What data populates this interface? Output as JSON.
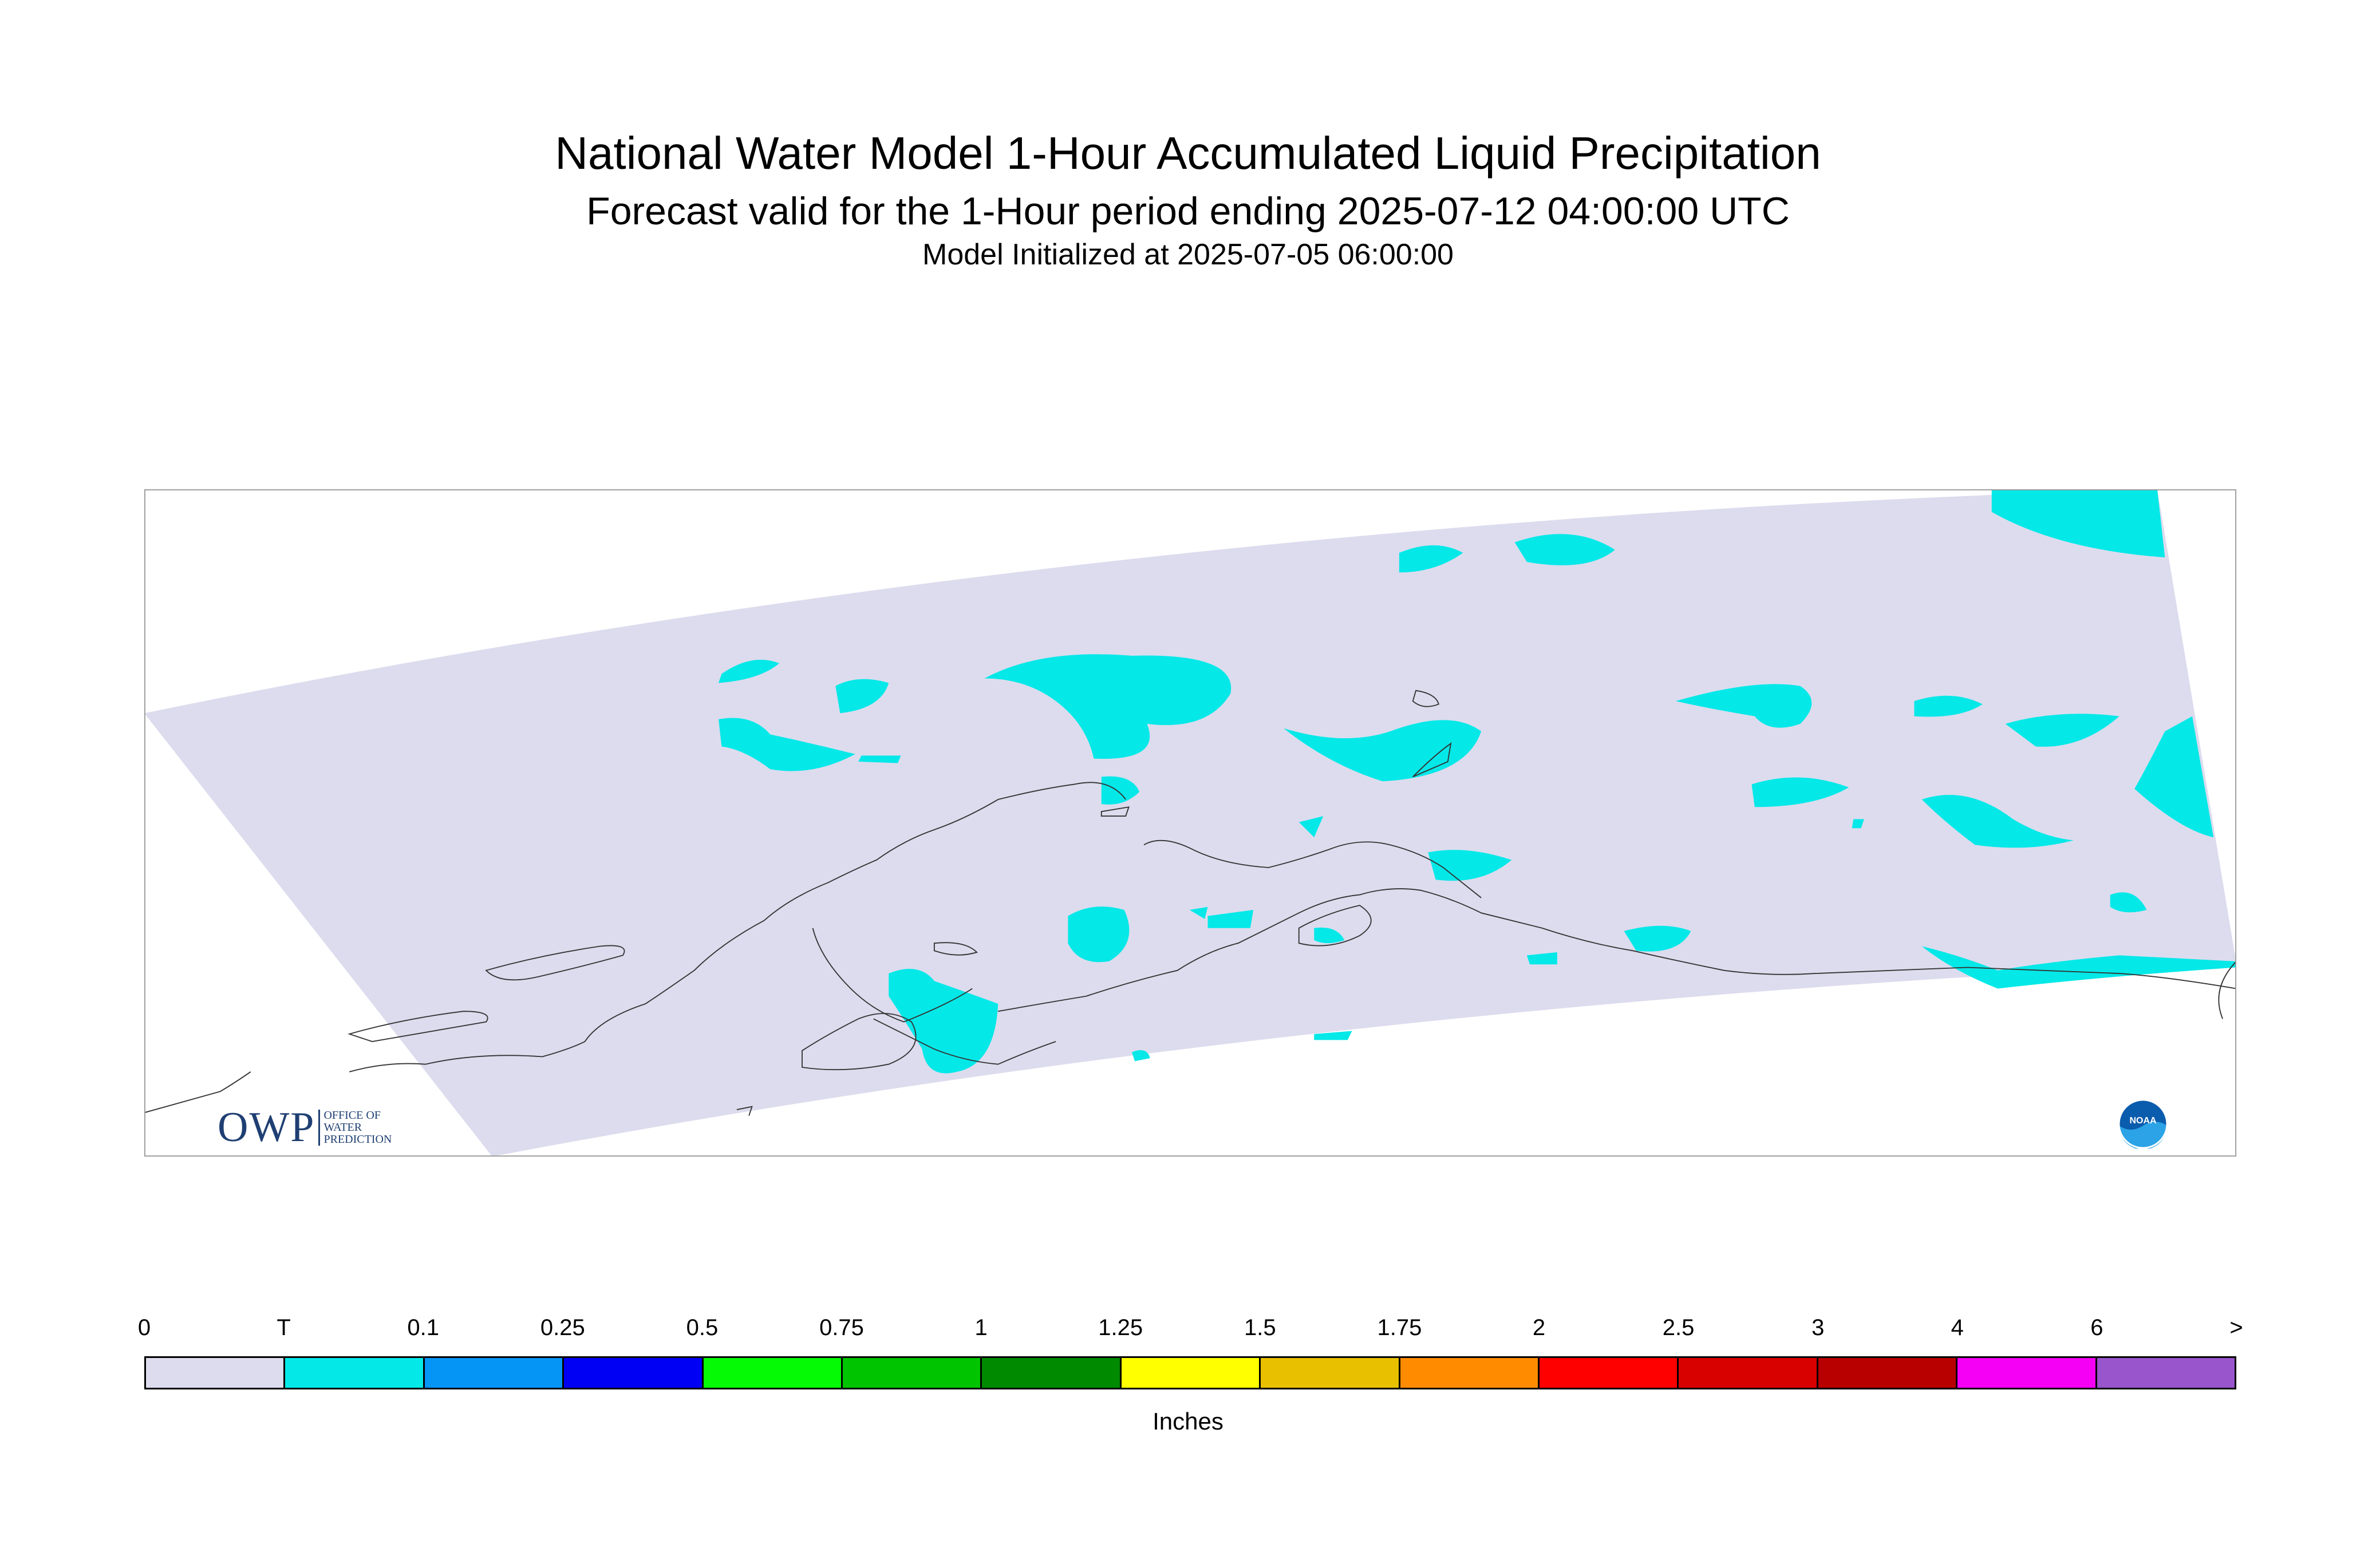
{
  "title": "National Water Model 1-Hour Accumulated Liquid Precipitation",
  "subtitle": "Forecast valid for the 1-Hour period ending 2025-07-12 04:00:00 UTC",
  "init_line": "Model Initialized at 2025-07-05 06:00:00",
  "colorbar": {
    "units": "Inches",
    "tick_labels": [
      "0",
      "T",
      "0.1",
      "0.25",
      "0.5",
      "0.75",
      "1",
      "1.25",
      "1.5",
      "1.75",
      "2",
      "2.5",
      "3",
      "4",
      "6",
      ">"
    ],
    "colors": [
      "#dcdcee",
      "#05e8e8",
      "#0595f5",
      "#0000f5",
      "#05fa05",
      "#00c400",
      "#008a00",
      "#ffff00",
      "#e8c000",
      "#ff8c00",
      "#ff0000",
      "#d90000",
      "#b80000",
      "#f500f5",
      "#9955cc"
    ]
  },
  "map": {
    "domain_color": "#dcdcee",
    "precip_color": "#05e8e8",
    "coastline_color": "#333333",
    "frame_color": "#999999"
  },
  "logos": {
    "owp_mark": "OWP",
    "owp_sub": [
      "OFFICE OF",
      "WATER",
      "PREDICTION"
    ],
    "noaa": "NOAA"
  }
}
